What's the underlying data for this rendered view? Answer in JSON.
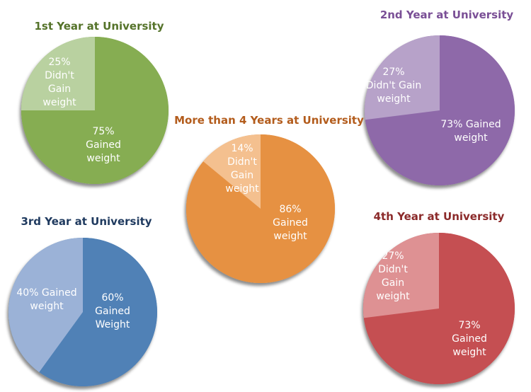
{
  "chart_data": [
    {
      "type": "pie",
      "id": "y1",
      "title": "1st Year at University",
      "title_color": "#55732a",
      "slices": [
        {
          "label": [
            "75%",
            "Gained",
            "weight"
          ],
          "value": 75,
          "color": "#86ad52"
        },
        {
          "label": [
            "25%",
            "Didn't",
            "Gain",
            "weight"
          ],
          "value": 25,
          "color": "#b9d1a0"
        }
      ]
    },
    {
      "type": "pie",
      "id": "y2",
      "title": "2nd Year at University",
      "title_color": "#7a4f96",
      "slices": [
        {
          "label": [
            "73% Gained",
            "weight"
          ],
          "value": 73,
          "color": "#8e69a9"
        },
        {
          "label": [
            "27%",
            "Didn't Gain",
            "weight"
          ],
          "value": 27,
          "color": "#b7a2c9"
        }
      ]
    },
    {
      "type": "pie",
      "id": "y5",
      "title": "More than 4 Years at University",
      "title_color": "#b35c1c",
      "slices": [
        {
          "label": [
            "86%",
            "Gained",
            "weight"
          ],
          "value": 86,
          "color": "#e69142"
        },
        {
          "label": [
            "14%",
            "Didn't",
            "Gain",
            "weight"
          ],
          "value": 14,
          "color": "#f4c08f"
        }
      ]
    },
    {
      "type": "pie",
      "id": "y3",
      "title": "3rd Year at University",
      "title_color": "#1f3a5f",
      "slices": [
        {
          "label": [
            "60%",
            "Gained",
            "Weight"
          ],
          "value": 60,
          "color": "#5081b6"
        },
        {
          "label": [
            "40% Gained",
            "weight"
          ],
          "value": 40,
          "color": "#9bb2d7"
        }
      ]
    },
    {
      "type": "pie",
      "id": "y4",
      "title": "4th Year at University",
      "title_color": "#8b2a2a",
      "slices": [
        {
          "label": [
            "73%",
            "Gained",
            "weight"
          ],
          "value": 73,
          "color": "#c54f52"
        },
        {
          "label": [
            "27%",
            "Didn't",
            "Gain",
            "weight"
          ],
          "value": 27,
          "color": "#de9193"
        }
      ]
    }
  ]
}
